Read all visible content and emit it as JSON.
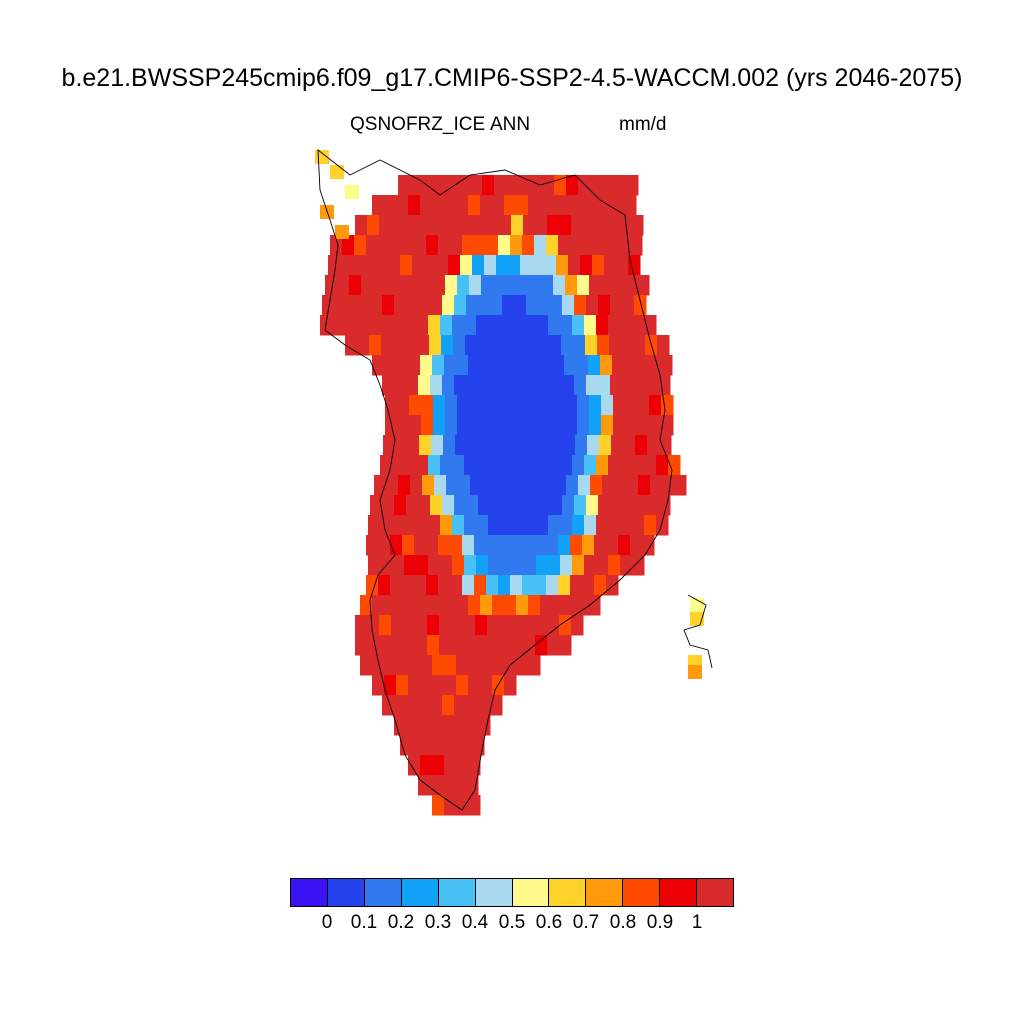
{
  "title": "b.e21.BWSSP245cmip6.f09_g17.CMIP6-SSP2-4.5-WACCM.002 (yrs 2046-2075)",
  "subtitle": {
    "variable": "QSNOFRZ_ICE",
    "season": "ANN",
    "units": "mm/d"
  },
  "colorbar": {
    "colors": [
      "#3a12f4",
      "#2443ec",
      "#3079ef",
      "#11a1f7",
      "#48c2f6",
      "#a9d9ef",
      "#fefa8c",
      "#ffd22a",
      "#fe9a0c",
      "#fe4b01",
      "#ec0006",
      "#d92a2c"
    ],
    "tick_labels": [
      "0",
      "0.1",
      "0.2",
      "0.3",
      "0.4",
      "0.5",
      "0.6",
      "0.7",
      "0.8",
      "0.9",
      "1"
    ]
  },
  "chart_data": {
    "type": "heatmap",
    "variable": "QSNOFRZ_ICE",
    "season": "ANN",
    "units": "mm/d",
    "region": "Greenland",
    "color_levels": [
      0,
      0.1,
      0.2,
      0.3,
      0.4,
      0.5,
      0.6,
      0.7,
      0.8,
      0.9,
      1
    ],
    "pattern": "values below 0.1 over the central interior, rising through 0.1-0.5 on the interior margins to above 1 around the coastal periphery"
  }
}
